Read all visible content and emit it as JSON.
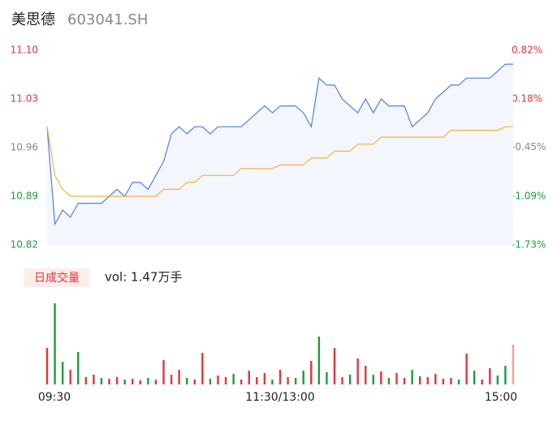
{
  "chart_data": [
    {
      "type": "line",
      "title": "美思德",
      "subtitle": "603041.SH",
      "x": [
        0,
        4,
        8,
        12,
        16,
        20,
        24,
        28,
        32,
        36,
        40,
        44,
        48,
        52,
        56,
        60,
        64,
        68,
        72,
        76,
        80,
        84,
        88,
        92,
        96,
        100,
        104,
        108,
        112,
        116,
        120,
        124,
        128,
        132,
        136,
        140,
        144,
        148,
        152,
        156,
        160,
        164,
        168,
        172,
        176,
        180,
        184,
        188,
        192,
        196,
        200,
        204,
        208,
        212,
        216,
        220,
        224,
        228,
        232,
        236,
        240
      ],
      "xlim": [
        0,
        240
      ],
      "series": [
        {
          "name": "price",
          "color": "#4a80e8",
          "values": [
            10.99,
            10.85,
            10.87,
            10.86,
            10.88,
            10.88,
            10.88,
            10.88,
            10.89,
            10.9,
            10.89,
            10.91,
            10.91,
            10.9,
            10.92,
            10.94,
            10.98,
            10.99,
            10.98,
            10.99,
            10.99,
            10.98,
            10.99,
            10.99,
            10.99,
            10.99,
            11.0,
            11.01,
            11.02,
            11.01,
            11.02,
            11.02,
            11.02,
            11.01,
            10.99,
            11.06,
            11.05,
            11.05,
            11.03,
            11.02,
            11.01,
            11.03,
            11.01,
            11.03,
            11.02,
            11.02,
            11.02,
            10.99,
            11.0,
            11.01,
            11.03,
            11.04,
            11.05,
            11.05,
            11.06,
            11.06,
            11.06,
            11.06,
            11.07,
            11.08,
            11.08
          ]
        },
        {
          "name": "average",
          "color": "#f2b33d",
          "values": [
            10.99,
            10.92,
            10.9,
            10.89,
            10.89,
            10.89,
            10.89,
            10.89,
            10.89,
            10.89,
            10.89,
            10.89,
            10.89,
            10.89,
            10.89,
            10.9,
            10.9,
            10.9,
            10.91,
            10.91,
            10.92,
            10.92,
            10.92,
            10.92,
            10.92,
            10.93,
            10.93,
            10.93,
            10.93,
            10.93,
            10.935,
            10.935,
            10.935,
            10.935,
            10.945,
            10.945,
            10.945,
            10.955,
            10.955,
            10.955,
            10.965,
            10.965,
            10.965,
            10.975,
            10.975,
            10.975,
            10.975,
            10.975,
            10.975,
            10.975,
            10.975,
            10.975,
            10.985,
            10.985,
            10.985,
            10.985,
            10.985,
            10.985,
            10.985,
            10.99,
            10.99
          ]
        }
      ],
      "ylim": [
        10.82,
        11.1
      ],
      "yticks": [
        {
          "value": 11.1,
          "label": "11.10"
        },
        11.03,
        10.96,
        10.89,
        10.82
      ],
      "y2lim": [
        -1.73,
        0.82
      ],
      "y2ticks": [
        {
          "value": 0.82,
          "label": "0.82%"
        },
        {
          "value": 0.18,
          "label": "0.18%"
        },
        {
          "value": -0.45,
          "label": "-0.45%"
        },
        {
          "value": -1.09,
          "label": "-1.09%"
        },
        {
          "value": -1.73,
          "label": "-1.73%"
        }
      ],
      "ytick_colors": [
        "#e8323c",
        "#e8323c",
        "#888888",
        "#1a9e3c",
        "#1a9e3c"
      ]
    },
    {
      "type": "bar",
      "legend": "日成交量",
      "annotation": "vol: 1.47万手",
      "x": [
        0,
        4,
        8,
        12,
        16,
        20,
        24,
        28,
        32,
        36,
        40,
        44,
        48,
        52,
        56,
        60,
        64,
        68,
        72,
        76,
        80,
        84,
        88,
        92,
        96,
        100,
        104,
        108,
        112,
        116,
        120,
        124,
        128,
        132,
        136,
        140,
        144,
        148,
        152,
        156,
        160,
        164,
        168,
        172,
        176,
        180,
        184,
        188,
        192,
        196,
        200,
        204,
        208,
        212,
        216,
        220,
        224,
        228,
        232,
        236,
        240
      ],
      "xlim": [
        0,
        240
      ],
      "xticks": [
        {
          "value": 0,
          "label": "09:30"
        },
        {
          "value": 120,
          "label": "11:30/13:00"
        },
        {
          "value": 240,
          "label": "15:00"
        }
      ],
      "values": [
        450,
        1000,
        280,
        180,
        400,
        90,
        120,
        80,
        70,
        90,
        60,
        70,
        50,
        80,
        60,
        300,
        120,
        180,
        80,
        60,
        390,
        70,
        110,
        90,
        130,
        60,
        170,
        90,
        140,
        60,
        180,
        90,
        80,
        170,
        290,
        590,
        150,
        450,
        90,
        120,
        320,
        230,
        120,
        160,
        80,
        140,
        80,
        180,
        100,
        90,
        130,
        70,
        80,
        60,
        380,
        170,
        60,
        200,
        110,
        230,
        490
      ],
      "ylim": [
        0,
        1040
      ],
      "colors": [
        "#e8323c",
        "#1a9e3c",
        "#1a9e3c",
        "#e8323c",
        "#1a9e3c",
        "#e8323c",
        "#e8323c",
        "#1a9e3c",
        "#e8323c",
        "#e8323c",
        "#1a9e3c",
        "#e8323c",
        "#e8323c",
        "#1a9e3c",
        "#e8323c",
        "#e8323c",
        "#e8323c",
        "#e8323c",
        "#1a9e3c",
        "#e8323c",
        "#e8323c",
        "#1a9e3c",
        "#e8323c",
        "#e8323c",
        "#1a9e3c",
        "#e8323c",
        "#e8323c",
        "#e8323c",
        "#e8323c",
        "#1a9e3c",
        "#e8323c",
        "#e8323c",
        "#1a9e3c",
        "#1a9e3c",
        "#e8323c",
        "#1a9e3c",
        "#1a9e3c",
        "#e8323c",
        "#e8323c",
        "#1a9e3c",
        "#e8323c",
        "#e8323c",
        "#1a9e3c",
        "#e8323c",
        "#1a9e3c",
        "#e8323c",
        "#e8323c",
        "#1a9e3c",
        "#e8323c",
        "#e8323c",
        "#e8323c",
        "#e8323c",
        "#e8323c",
        "#1a9e3c",
        "#e8323c",
        "#1a9e3c",
        "#e8323c",
        "#e8323c",
        "#1a9e3c",
        "#1a9e3c",
        "#f5a0a0"
      ]
    }
  ]
}
